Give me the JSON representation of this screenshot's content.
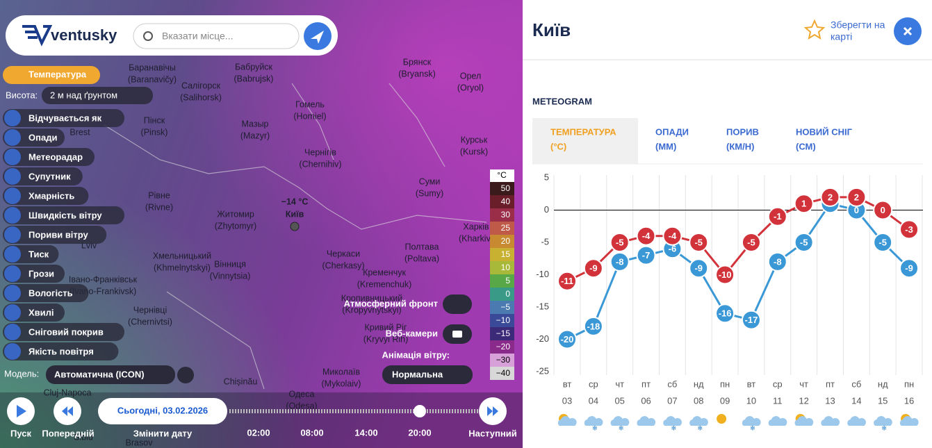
{
  "search": {
    "logo": "ventusky",
    "placeholder": "Вказати місце..."
  },
  "layers": {
    "active": "Температура",
    "height_label": "Висота:",
    "height_value": "2 м над ґрунтом",
    "items": [
      "Відчувається як",
      "Опади",
      "Метеорадар",
      "Супутник",
      "Хмарність",
      "Швидкість вітру",
      "Пориви вітру",
      "Тиск",
      "Грози",
      "Вологість",
      "Хвилі",
      "Сніговий покрив",
      "Якість повітря"
    ]
  },
  "map": {
    "labels": [
      {
        "name": "Баранавічы",
        "latin": "(Baranavičy)"
      },
      {
        "name": "Бабруйск",
        "latin": "(Babrujsk)"
      },
      {
        "name": "Брянск",
        "latin": "(Bryansk)"
      },
      {
        "name": "Орел",
        "latin": "(Oryol)"
      },
      {
        "name": "Салігорск",
        "latin": "(Salihorsk)"
      },
      {
        "name": "Гомель",
        "latin": "(Homiel)"
      },
      {
        "name": "Пінск",
        "latin": "(Pinsk)"
      },
      {
        "name": "Мазыр",
        "latin": "(Mazyr)"
      },
      {
        "name": "Brest"
      },
      {
        "name": "Курськ",
        "latin": "(Kursk)"
      },
      {
        "name": "Чернігів",
        "latin": "(Chernihiv)"
      },
      {
        "name": "Суми",
        "latin": "(Sumy)"
      },
      {
        "name": "Рівне",
        "latin": "(Rivne)"
      },
      {
        "name": "Житомир",
        "latin": "(Zhytomyr)"
      },
      {
        "name": "Харків",
        "latin": "(Kharkiv)"
      },
      {
        "name": "Lviv"
      },
      {
        "name": "Хмельницький",
        "latin": "(Khmelnytskyi)"
      },
      {
        "name": "Вінниця",
        "latin": "(Vinnytsia)"
      },
      {
        "name": "Черкаси",
        "latin": "(Cherkasy)"
      },
      {
        "name": "Полтава",
        "latin": "(Poltava)"
      },
      {
        "name": "Кременчук",
        "latin": "(Kremenchuk)"
      },
      {
        "name": "Івано-Франківськ",
        "latin": "(Ivano-Frankivsk)"
      },
      {
        "name": "Кропивницький",
        "latin": "(Kropyvnytskyi)"
      },
      {
        "name": "Чернівці",
        "latin": "(Chernivtsi)"
      },
      {
        "name": "Кривий Ріг",
        "latin": "(Kryvyi Rih)"
      },
      {
        "name": "Миколаїв",
        "latin": "(Mykolaiv)"
      },
      {
        "name": "Одеса",
        "latin": "(Odesa)"
      },
      {
        "name": "Chișinău"
      },
      {
        "name": "Cluj-Napoca"
      },
      {
        "name": "Sibiu"
      },
      {
        "name": "Brasov"
      }
    ],
    "marker": {
      "temp": "−14 °C",
      "city": "Київ"
    }
  },
  "legend": {
    "unit": "°C",
    "items": [
      "50",
      "40",
      "30",
      "25",
      "20",
      "15",
      "10",
      "5",
      "0",
      "−5",
      "−10",
      "−15",
      "−20",
      "−30",
      "−40"
    ],
    "colors": [
      "#3a1a1a",
      "#6a1e2a",
      "#9a2e48",
      "#c05a48",
      "#c88a30",
      "#c8b030",
      "#a8b838",
      "#58a848",
      "#3a9a88",
      "#4a7ab0",
      "#3a4a98",
      "#3a2a78",
      "#8a2a8a",
      "#d8a0d8",
      "#d8d8d8"
    ]
  },
  "controls": {
    "front": "Атмосферний фронт",
    "webcams": "Веб-камери",
    "animation_label": "Анімація вітру:",
    "animation_value": "Нормальна",
    "model_label": "Модель:",
    "model_value": "Автоматична (ICON)"
  },
  "timeline": {
    "play": "Пуск",
    "prev": "Попередній",
    "date": "Сьогодні, 03.02.2026",
    "change": "Змінити дату",
    "times": [
      "02:00",
      "08:00",
      "14:00",
      "20:00"
    ],
    "next": "Наступний"
  },
  "panel": {
    "city": "Київ",
    "save": [
      "Зберегти на",
      "карті"
    ],
    "section": "METEOGRAM",
    "tabs": [
      {
        "label": "ТЕМПЕРАТУРА",
        "unit": "(°C)"
      },
      {
        "label": "ОПАДИ",
        "unit": "(ММ)"
      },
      {
        "label": "ПОРИВ",
        "unit": "(КМ/Н)"
      },
      {
        "label": "НОВИЙ СНІГ",
        "unit": "(СМ)"
      }
    ]
  },
  "meteogram": {
    "type": "line",
    "ylim": [
      -25,
      5
    ],
    "yticks": [
      5,
      0,
      -5,
      -10,
      -15,
      -20,
      -25
    ],
    "days": [
      "вт",
      "ср",
      "чт",
      "пт",
      "сб",
      "нд",
      "пн",
      "вт",
      "ср",
      "чт",
      "пт",
      "сб",
      "нд",
      "пн"
    ],
    "dates": [
      "03",
      "04",
      "05",
      "06",
      "07",
      "08",
      "09",
      "10",
      "11",
      "12",
      "13",
      "14",
      "15",
      "16"
    ],
    "series": [
      {
        "color": "#d2323a",
        "values": [
          -11,
          -9,
          -5,
          -4,
          -4,
          -5,
          -10,
          -5,
          -1,
          1,
          2,
          2,
          0,
          -3
        ]
      },
      {
        "color": "#3a98d6",
        "values": [
          -20,
          -18,
          -8,
          -7,
          -6,
          -9,
          -16,
          -17,
          -8,
          -5,
          1,
          0,
          -5,
          -9
        ]
      }
    ]
  }
}
